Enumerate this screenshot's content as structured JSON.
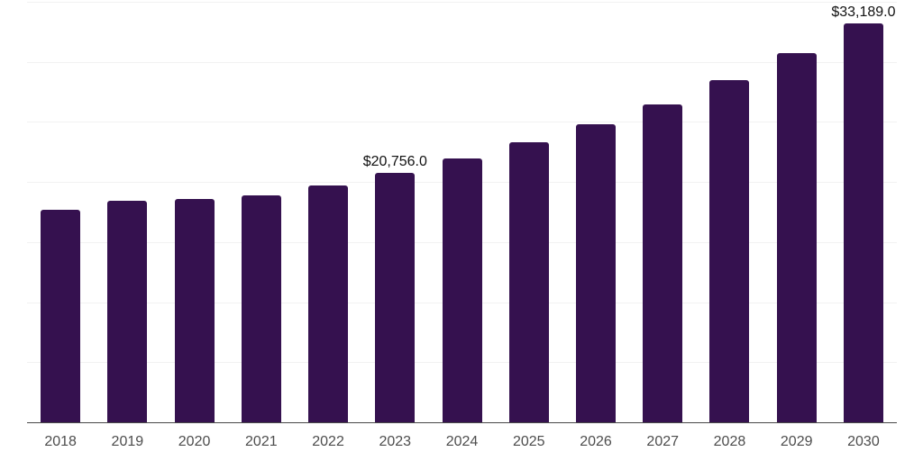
{
  "chart_data": {
    "type": "bar",
    "title": "",
    "xlabel": "",
    "ylabel": "",
    "categories": [
      "2018",
      "2019",
      "2020",
      "2021",
      "2022",
      "2023",
      "2024",
      "2025",
      "2026",
      "2027",
      "2028",
      "2029",
      "2030"
    ],
    "values": [
      17720,
      18460,
      18580,
      18910,
      19740,
      20756,
      21950,
      23300,
      24790,
      26440,
      28460,
      30710,
      33189
    ],
    "annotations": [
      {
        "category": "2023",
        "text": "$20,756.0"
      },
      {
        "category": "2030",
        "text": "$33,189.0"
      }
    ],
    "ylim": [
      0,
      35000
    ],
    "gridline_step": 5000,
    "grid": true,
    "legend": false,
    "y_tick_labels_visible": false,
    "colors": {
      "bar": "#35114F",
      "gridline": "#f2f2f2",
      "axis_line": "#494949",
      "x_tick_label": "#4d4d4d",
      "data_label": "#111111",
      "background": "#ffffff"
    }
  }
}
